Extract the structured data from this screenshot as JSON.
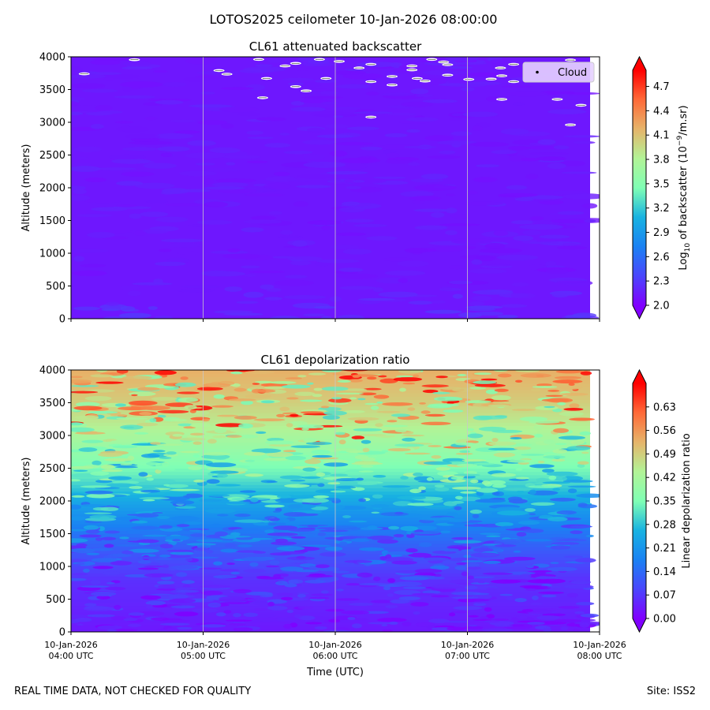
{
  "suptitle": "LOTOS2025 ceilometer 10-Jan-2026 08:00:00",
  "footer": {
    "left": "REAL TIME DATA, NOT CHECKED FOR QUALITY",
    "right": "Site: ISS2"
  },
  "chart_data": [
    {
      "type": "heatmap",
      "title": "CL61 attenuated backscatter",
      "xlabel": "",
      "ylabel": "Altitude (meters)",
      "ylim": [
        0,
        4000
      ],
      "yticks": [
        "0",
        "500",
        "1000",
        "1500",
        "2000",
        "2500",
        "3000",
        "3500",
        "4000"
      ],
      "xticks": [],
      "colorbar": {
        "label_prefix": "Log",
        "label_sub": "10",
        "label_mid": " of backscatter (10",
        "label_sup": "−9",
        "label_suffix": "/m.sr)",
        "range": [
          2.0,
          4.9
        ],
        "ticks": [
          "2.0",
          "2.3",
          "2.6",
          "2.9",
          "3.2",
          "3.5",
          "3.8",
          "4.1",
          "4.4",
          "4.7"
        ],
        "extend": "both",
        "colormap": "rainbow"
      },
      "legend": {
        "label": "Cloud",
        "location": "top-right"
      },
      "field_description": "backscatter near 2.0-2.3 throughout, slightly higher below 600 m",
      "clouds": [
        {
          "time_h": 0.1,
          "alt_m": 3740
        },
        {
          "time_h": 0.48,
          "alt_m": 3955
        },
        {
          "time_h": 1.12,
          "alt_m": 3790
        },
        {
          "time_h": 1.18,
          "alt_m": 3735
        },
        {
          "time_h": 1.42,
          "alt_m": 3960
        },
        {
          "time_h": 1.48,
          "alt_m": 3670
        },
        {
          "time_h": 1.45,
          "alt_m": 3375
        },
        {
          "time_h": 1.62,
          "alt_m": 3860
        },
        {
          "time_h": 1.7,
          "alt_m": 3900
        },
        {
          "time_h": 1.7,
          "alt_m": 3545
        },
        {
          "time_h": 1.78,
          "alt_m": 3480
        },
        {
          "time_h": 1.88,
          "alt_m": 3960
        },
        {
          "time_h": 1.93,
          "alt_m": 3670
        },
        {
          "time_h": 2.03,
          "alt_m": 3930
        },
        {
          "time_h": 2.18,
          "alt_m": 3830
        },
        {
          "time_h": 2.27,
          "alt_m": 3885
        },
        {
          "time_h": 2.27,
          "alt_m": 3620
        },
        {
          "time_h": 2.27,
          "alt_m": 3080
        },
        {
          "time_h": 2.43,
          "alt_m": 3700
        },
        {
          "time_h": 2.43,
          "alt_m": 3570
        },
        {
          "time_h": 2.58,
          "alt_m": 3860
        },
        {
          "time_h": 2.58,
          "alt_m": 3800
        },
        {
          "time_h": 2.62,
          "alt_m": 3670
        },
        {
          "time_h": 2.68,
          "alt_m": 3630
        },
        {
          "time_h": 2.73,
          "alt_m": 3960
        },
        {
          "time_h": 2.82,
          "alt_m": 3920
        },
        {
          "time_h": 2.85,
          "alt_m": 3720
        },
        {
          "time_h": 2.85,
          "alt_m": 3880
        },
        {
          "time_h": 3.01,
          "alt_m": 3655
        },
        {
          "time_h": 3.18,
          "alt_m": 3660
        },
        {
          "time_h": 3.25,
          "alt_m": 3830
        },
        {
          "time_h": 3.26,
          "alt_m": 3710
        },
        {
          "time_h": 3.26,
          "alt_m": 3350
        },
        {
          "time_h": 3.35,
          "alt_m": 3620
        },
        {
          "time_h": 3.35,
          "alt_m": 3885
        },
        {
          "time_h": 3.68,
          "alt_m": 3350
        },
        {
          "time_h": 3.78,
          "alt_m": 2960
        },
        {
          "time_h": 3.86,
          "alt_m": 3260
        },
        {
          "time_h": 3.78,
          "alt_m": 3950
        }
      ]
    },
    {
      "type": "heatmap",
      "title": "CL61 depolarization ratio",
      "xlabel": "Time (UTC)",
      "ylabel": "Altitude (meters)",
      "ylim": [
        0,
        4000
      ],
      "yticks": [
        "0",
        "500",
        "1000",
        "1500",
        "2000",
        "2500",
        "3000",
        "3500",
        "4000"
      ],
      "xlim_hours_utc": [
        4,
        8
      ],
      "xticks": [
        {
          "date": "10-Jan-2026",
          "time": "04:00 UTC"
        },
        {
          "date": "10-Jan-2026",
          "time": "05:00 UTC"
        },
        {
          "date": "10-Jan-2026",
          "time": "06:00 UTC"
        },
        {
          "date": "10-Jan-2026",
          "time": "07:00 UTC"
        },
        {
          "date": "10-Jan-2026",
          "time": "08:00 UTC"
        }
      ],
      "colorbar": {
        "label": "Linear depolarization ratio",
        "range": [
          0.0,
          0.7
        ],
        "ticks": [
          "0.00",
          "0.07",
          "0.14",
          "0.21",
          "0.28",
          "0.35",
          "0.42",
          "0.49",
          "0.56",
          "0.63"
        ],
        "extend": "both",
        "colormap": "rainbow"
      },
      "profile": [
        {
          "alt_m": 0,
          "value": 0.03
        },
        {
          "alt_m": 800,
          "value": 0.06
        },
        {
          "alt_m": 1200,
          "value": 0.11
        },
        {
          "alt_m": 1600,
          "value": 0.17
        },
        {
          "alt_m": 2000,
          "value": 0.24
        },
        {
          "alt_m": 2400,
          "value": 0.33
        },
        {
          "alt_m": 2800,
          "value": 0.39
        },
        {
          "alt_m": 3200,
          "value": 0.45
        },
        {
          "alt_m": 3600,
          "value": 0.5
        },
        {
          "alt_m": 4000,
          "value": 0.53
        }
      ]
    }
  ]
}
